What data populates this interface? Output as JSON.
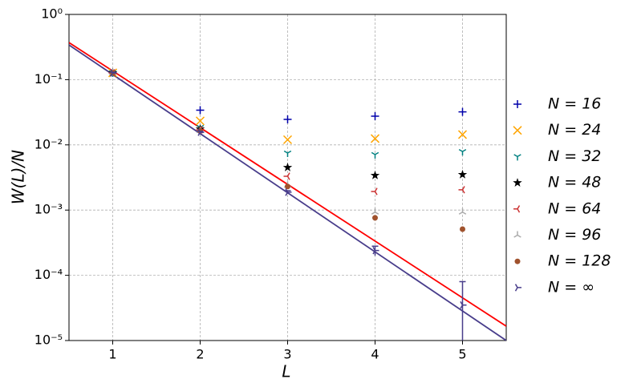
{
  "chart_data": {
    "type": "scatter",
    "x_label": "L",
    "y_label": "W(L)/N",
    "x": [
      1,
      2,
      3,
      4,
      5
    ],
    "xlim": [
      0.5,
      5.5
    ],
    "xticks": [
      1,
      2,
      3,
      4,
      5
    ],
    "ylim": [
      1e-05,
      1
    ],
    "log_y": true,
    "grid": true,
    "yticks": [
      {
        "value": 1e-05,
        "label": "10⁻⁵"
      },
      {
        "value": 0.0001,
        "label": "10⁻⁴"
      },
      {
        "value": 0.001,
        "label": "10⁻³"
      },
      {
        "value": 0.01,
        "label": "10⁻²"
      },
      {
        "value": 0.1,
        "label": "10⁻¹"
      },
      {
        "value": 1,
        "label": "10⁰"
      }
    ],
    "series": [
      {
        "name": "N = 16",
        "color": "#0000aa",
        "marker": "plus",
        "values": [
          0.127,
          0.034,
          0.0246,
          0.0275,
          0.032
        ]
      },
      {
        "name": "N = 24",
        "color": "#ffa500",
        "marker": "x",
        "values": [
          0.127,
          0.0233,
          0.012,
          0.0125,
          0.0144
        ]
      },
      {
        "name": "N = 32",
        "color": "#008080",
        "marker": "tri_down",
        "values": [
          0.127,
          0.0185,
          0.0075,
          0.0071,
          0.0079
        ]
      },
      {
        "name": "N = 48",
        "color": "#000000",
        "marker": "star",
        "values": [
          0.127,
          0.0175,
          0.0045,
          0.0034,
          0.0035
        ]
      },
      {
        "name": "N = 64",
        "color": "#cc3333",
        "marker": "tri_left",
        "values": [
          0.127,
          0.017,
          0.0033,
          0.00193,
          0.00205
        ]
      },
      {
        "name": "N = 96",
        "color": "#aaaaaa",
        "marker": "tri_up",
        "values": [
          0.127,
          0.0165,
          0.0024,
          0.00093,
          0.00093
        ]
      },
      {
        "name": "N = 128",
        "color": "#a0522d",
        "marker": "circle",
        "values": [
          0.127,
          0.0165,
          0.0023,
          0.00076,
          0.00051
        ]
      },
      {
        "name": "N = ∞",
        "color": "#483d8b",
        "marker": "tri_right",
        "values": [
          0.127,
          0.0156,
          0.00188,
          0.00024,
          3.5e-05
        ],
        "errors": [
          0.003,
          0.0005,
          0.0001,
          4e-05,
          4.5e-05
        ]
      }
    ],
    "lines": [
      {
        "color": "#ff0000",
        "x": [
          0.5,
          5.5
        ],
        "values": [
          0.37,
          1.66e-05
        ]
      },
      {
        "color": "#483d8b",
        "x": [
          0.5,
          5.5
        ],
        "values": [
          0.34,
          1e-05
        ]
      }
    ]
  }
}
